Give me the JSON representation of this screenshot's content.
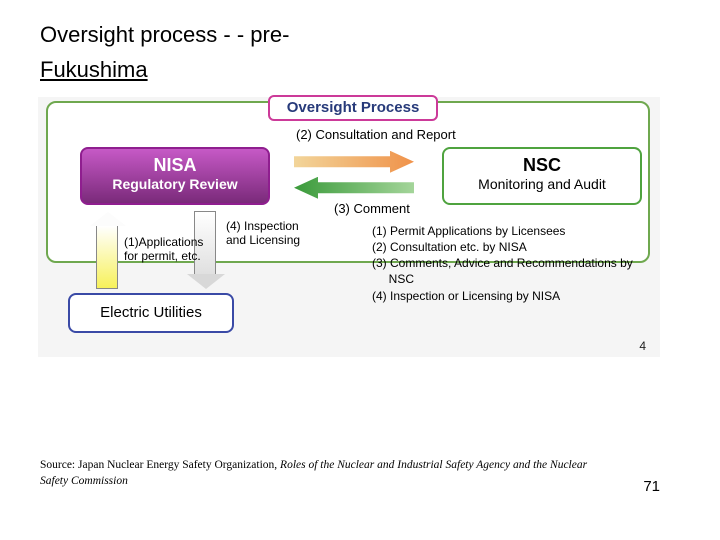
{
  "title_line1": "Oversight process - - pre-",
  "title_line2": "Fukushima",
  "diagram": {
    "header_label": "Oversight Process",
    "consultation": "(2) Consultation and Report",
    "comment": "(3) Comment",
    "nisa": {
      "title": "NISA",
      "subtitle": "Regulatory Review",
      "bg_gradient_top": "#c659c6",
      "bg_gradient_bottom": "#7a2a7a",
      "border": "#8f1e8f"
    },
    "nsc": {
      "title": "NSC",
      "subtitle": "Monitoring and Audit",
      "border": "#4fa33f"
    },
    "arrow_right_colors": [
      "#f2d59a",
      "#f0924a"
    ],
    "arrow_left_colors": [
      "#3a9a3a",
      "#a4d59a"
    ],
    "ann1_l1": "(1)Applications",
    "ann1_l2": "for permit, etc.",
    "ann4_l1": "(4) Inspection",
    "ann4_l2": "and Licensing",
    "electric": "Electric Utilities",
    "legend": {
      "l1": "(1) Permit Applications by Licensees",
      "l2": "(2) Consultation etc. by NISA",
      "l3a": "(3) Comments, Advice and Recommendations by",
      "l3b": "     NSC",
      "l4": "(4) Inspection or Licensing by NISA"
    },
    "outer_border": "#6fa84f",
    "header_border": "#cc3a99",
    "elec_border": "#3a4aa6",
    "sheet_bg": "#f5f5f5",
    "inner_page_num": "4"
  },
  "source_prefix": "Source: Japan Nuclear Energy Safety Organization, ",
  "source_italic": "Roles of the Nuclear and Industrial Safety Agency and the Nuclear Safety Commission",
  "page_number": "71"
}
